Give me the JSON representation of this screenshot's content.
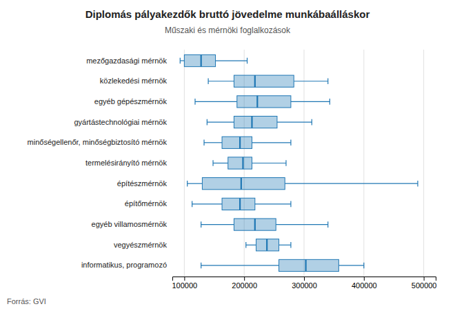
{
  "chart_data": {
    "type": "box",
    "title": "Diplomás pályakezdők bruttó jövedelme munkábaálláskor",
    "subtitle": "Műszaki és mérnöki foglalkozások",
    "source": "Forrás: GVI",
    "categories": [
      "mezőgazdasági mérnök",
      "közlekedési mérnök",
      "egyéb gépészmérnök",
      "gyártástechnológiai mérnök",
      "minőségellenőr, minőségbiztosító mérnök",
      "termelésirányító mérnök",
      "építészmérnök",
      "építőmérnök",
      "egyéb villamosmérnök",
      "vegyészmérnök",
      "informatikus, programozó"
    ],
    "whisker_low": [
      93000,
      140000,
      118000,
      138000,
      133000,
      148000,
      105000,
      113000,
      128000,
      203000,
      128000
    ],
    "q1": [
      100000,
      183000,
      188000,
      183000,
      163000,
      173000,
      130000,
      163000,
      183000,
      220000,
      258000
    ],
    "median": [
      128000,
      218000,
      222000,
      213000,
      193000,
      198000,
      195000,
      193000,
      218000,
      238000,
      303000
    ],
    "q3": [
      152000,
      283000,
      278000,
      255000,
      213000,
      213000,
      268000,
      218000,
      253000,
      258000,
      358000
    ],
    "whisker_high": [
      205000,
      340000,
      343000,
      313000,
      278000,
      270000,
      490000,
      278000,
      340000,
      278000,
      400000
    ],
    "xlim": [
      80000,
      520000
    ],
    "xticks": [
      100000,
      200000,
      300000,
      400000,
      500000
    ],
    "grid": true
  }
}
